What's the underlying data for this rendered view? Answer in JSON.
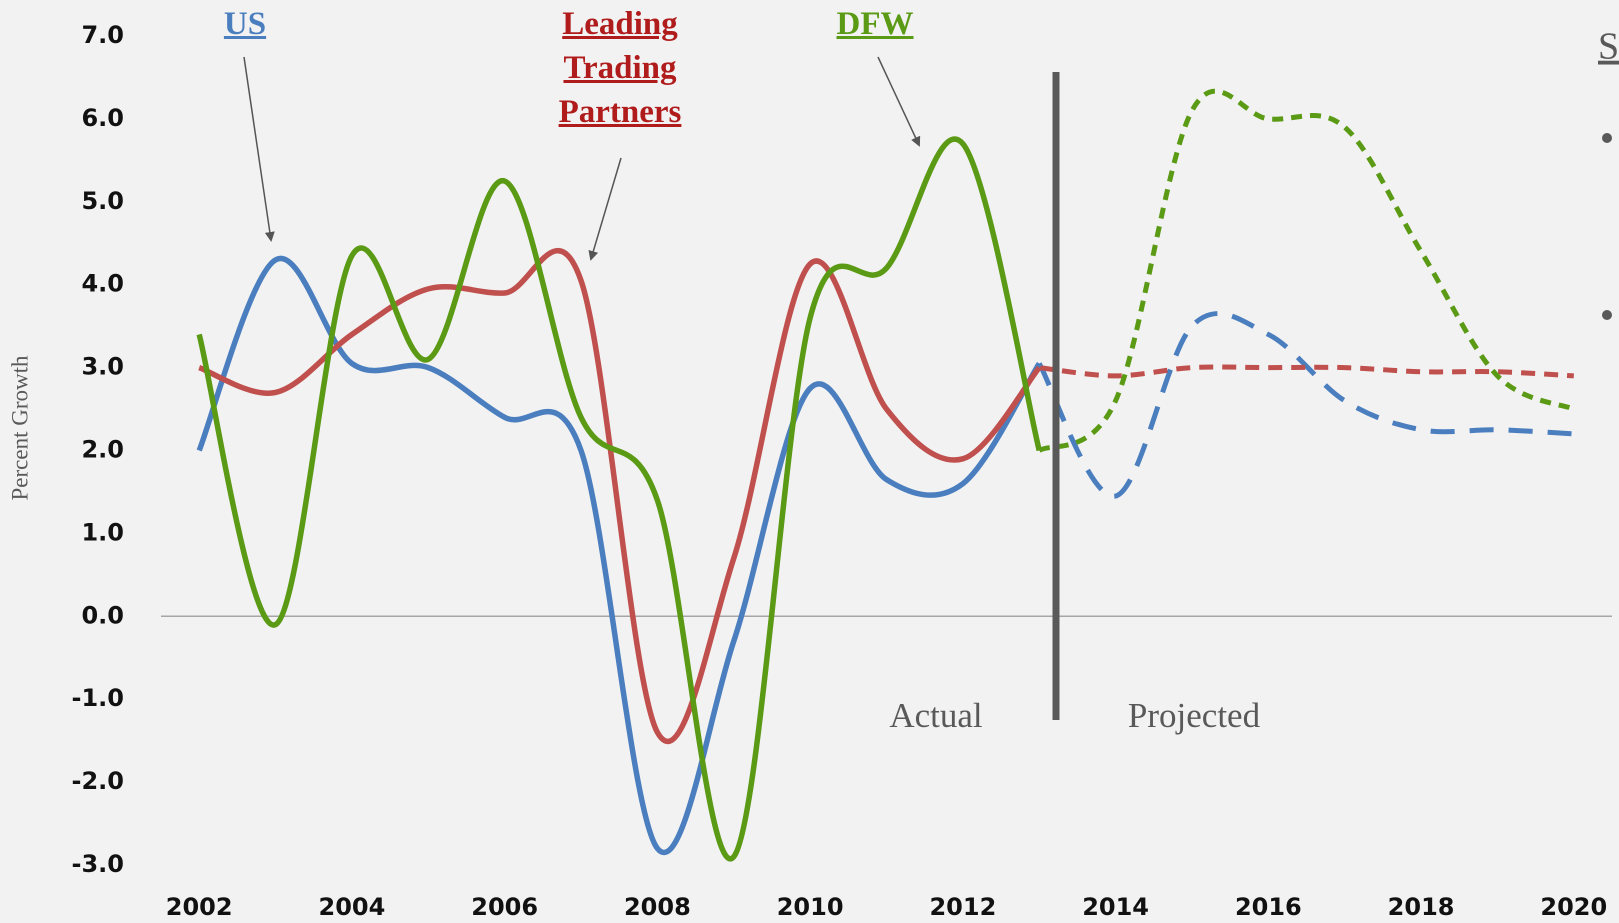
{
  "chart_data": {
    "type": "line",
    "y_label": "Percent Growth",
    "x": [
      2002,
      2003,
      2004,
      2005,
      2006,
      2007,
      2008,
      2009,
      2010,
      2011,
      2012,
      2013,
      2014,
      2015,
      2016,
      2017,
      2018,
      2019,
      2020
    ],
    "series": [
      {
        "name": "US",
        "color": "#4a7ebf",
        "values": [
          2.0,
          4.3,
          3.05,
          3.0,
          2.4,
          2.0,
          -2.8,
          -0.3,
          2.75,
          1.65,
          1.6,
          3.05,
          null,
          null,
          null,
          null,
          null,
          null,
          null
        ],
        "projected_values": [
          null,
          null,
          null,
          null,
          null,
          null,
          null,
          null,
          null,
          null,
          null,
          3.05,
          1.45,
          3.5,
          3.4,
          2.6,
          2.25,
          2.25,
          2.2
        ]
      },
      {
        "name": "Leading Trading Partners",
        "color": "#c0504d",
        "values": [
          3.0,
          2.7,
          3.4,
          3.95,
          3.9,
          4.05,
          -1.4,
          0.7,
          4.25,
          2.5,
          1.9,
          3.0,
          null,
          null,
          null,
          null,
          null,
          null,
          null
        ],
        "projected_values": [
          null,
          null,
          null,
          null,
          null,
          null,
          null,
          null,
          null,
          null,
          null,
          3.0,
          2.9,
          3.0,
          3.0,
          3.0,
          2.95,
          2.95,
          2.9
        ]
      },
      {
        "name": "DFW",
        "color": "#5a9a14",
        "values": [
          3.4,
          -0.1,
          4.35,
          3.1,
          5.25,
          2.4,
          1.4,
          -2.9,
          3.6,
          4.2,
          5.7,
          2.0,
          null,
          null,
          null,
          null,
          null,
          null,
          null
        ],
        "projected_values": [
          null,
          null,
          null,
          null,
          null,
          null,
          null,
          null,
          null,
          null,
          null,
          2.0,
          2.6,
          6.1,
          6.0,
          5.9,
          4.4,
          2.9,
          2.5
        ]
      }
    ],
    "xlim": [
      2001.5,
      2020.5
    ],
    "xticks": [
      2002,
      2004,
      2006,
      2008,
      2010,
      2012,
      2014,
      2016,
      2018,
      2020
    ],
    "ylim": [
      -3,
      7
    ],
    "yticks": [
      {
        "value": 7,
        "label": "7.0"
      },
      {
        "value": 6,
        "label": "6.0"
      },
      {
        "value": 5,
        "label": "5.0"
      },
      {
        "value": 4,
        "label": "4.0"
      },
      {
        "value": 3,
        "label": "3.0"
      },
      {
        "value": 2,
        "label": "2.0"
      },
      {
        "value": 1,
        "label": "1.0"
      },
      {
        "value": 0,
        "label": "0.0"
      },
      {
        "value": -1,
        "label": "-1.0"
      },
      {
        "value": -2,
        "label": "-2.0"
      },
      {
        "value": -3,
        "label": "-3.0"
      }
    ],
    "grid": false,
    "annotations": {
      "actual": "Actual",
      "projected": "Projected"
    },
    "side_heading": "S"
  }
}
